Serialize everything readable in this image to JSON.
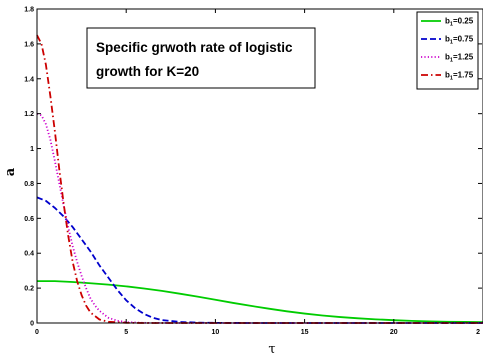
{
  "chart_data": {
    "type": "line",
    "title": "",
    "annotation": [
      "Specific grwoth rate of logistic",
      "growth for K=20"
    ],
    "xlabel": "τ",
    "ylabel": "a",
    "xlim": [
      0,
      25
    ],
    "ylim": [
      0,
      1.8
    ],
    "xticks": [
      "0",
      "5",
      "10",
      "15",
      "20",
      "2"
    ],
    "yticks": [
      "0",
      "0.2",
      "0.4",
      "0.6",
      "0.8",
      "1",
      "1.2",
      "1.4",
      "1.6",
      "1.8"
    ],
    "grid": false,
    "legend_position": "top-right",
    "series": [
      {
        "name_base": "b",
        "name_sub": "1",
        "name_value": "=0.25",
        "color": "#00cc00",
        "style": "solid",
        "x": [
          0,
          1,
          2,
          3,
          4,
          5,
          6,
          7,
          8,
          9,
          10,
          11,
          12,
          13,
          14,
          15,
          16,
          17,
          18,
          19,
          20,
          21,
          22,
          23,
          24,
          25
        ],
        "y": [
          0.24,
          0.24,
          0.235,
          0.228,
          0.22,
          0.21,
          0.198,
          0.184,
          0.168,
          0.151,
          0.133,
          0.115,
          0.098,
          0.082,
          0.067,
          0.054,
          0.043,
          0.034,
          0.027,
          0.021,
          0.016,
          0.012,
          0.009,
          0.007,
          0.006,
          0.005
        ]
      },
      {
        "name_base": "b",
        "name_sub": "1",
        "name_value": "=0.75",
        "color": "#0000cc",
        "style": "dashed",
        "x": [
          0,
          0.5,
          1,
          1.5,
          2,
          2.5,
          3,
          3.5,
          4,
          4.5,
          5,
          5.5,
          6,
          6.5,
          7,
          8,
          9,
          10,
          11,
          12,
          25
        ],
        "y": [
          0.72,
          0.7,
          0.66,
          0.61,
          0.55,
          0.48,
          0.41,
          0.33,
          0.26,
          0.19,
          0.13,
          0.085,
          0.052,
          0.03,
          0.017,
          0.006,
          0.002,
          0.0008,
          0.0003,
          0.0001,
          0
        ]
      },
      {
        "name_base": "b",
        "name_sub": "1",
        "name_value": "=1.25",
        "color": "#cc00cc",
        "style": "dotted",
        "x": [
          0,
          0.25,
          0.5,
          0.75,
          1,
          1.25,
          1.5,
          1.75,
          2,
          2.25,
          2.5,
          2.75,
          3,
          3.25,
          3.5,
          4,
          4.5,
          5,
          6,
          8,
          25
        ],
        "y": [
          1.2,
          1.19,
          1.14,
          1.05,
          0.93,
          0.8,
          0.67,
          0.55,
          0.44,
          0.35,
          0.27,
          0.2,
          0.14,
          0.1,
          0.07,
          0.03,
          0.013,
          0.005,
          0.001,
          0,
          0
        ]
      },
      {
        "name_base": "b",
        "name_sub": "1",
        "name_value": "=1.75",
        "color": "#cc0000",
        "style": "dashdot",
        "x": [
          0,
          0.25,
          0.5,
          0.75,
          1,
          1.25,
          1.5,
          1.75,
          2,
          2.25,
          2.5,
          2.75,
          3,
          3.5,
          4,
          5,
          6,
          25
        ],
        "y": [
          1.65,
          1.6,
          1.48,
          1.3,
          1.1,
          0.88,
          0.68,
          0.5,
          0.35,
          0.24,
          0.16,
          0.1,
          0.06,
          0.02,
          0.007,
          0.001,
          0,
          0
        ]
      }
    ]
  }
}
